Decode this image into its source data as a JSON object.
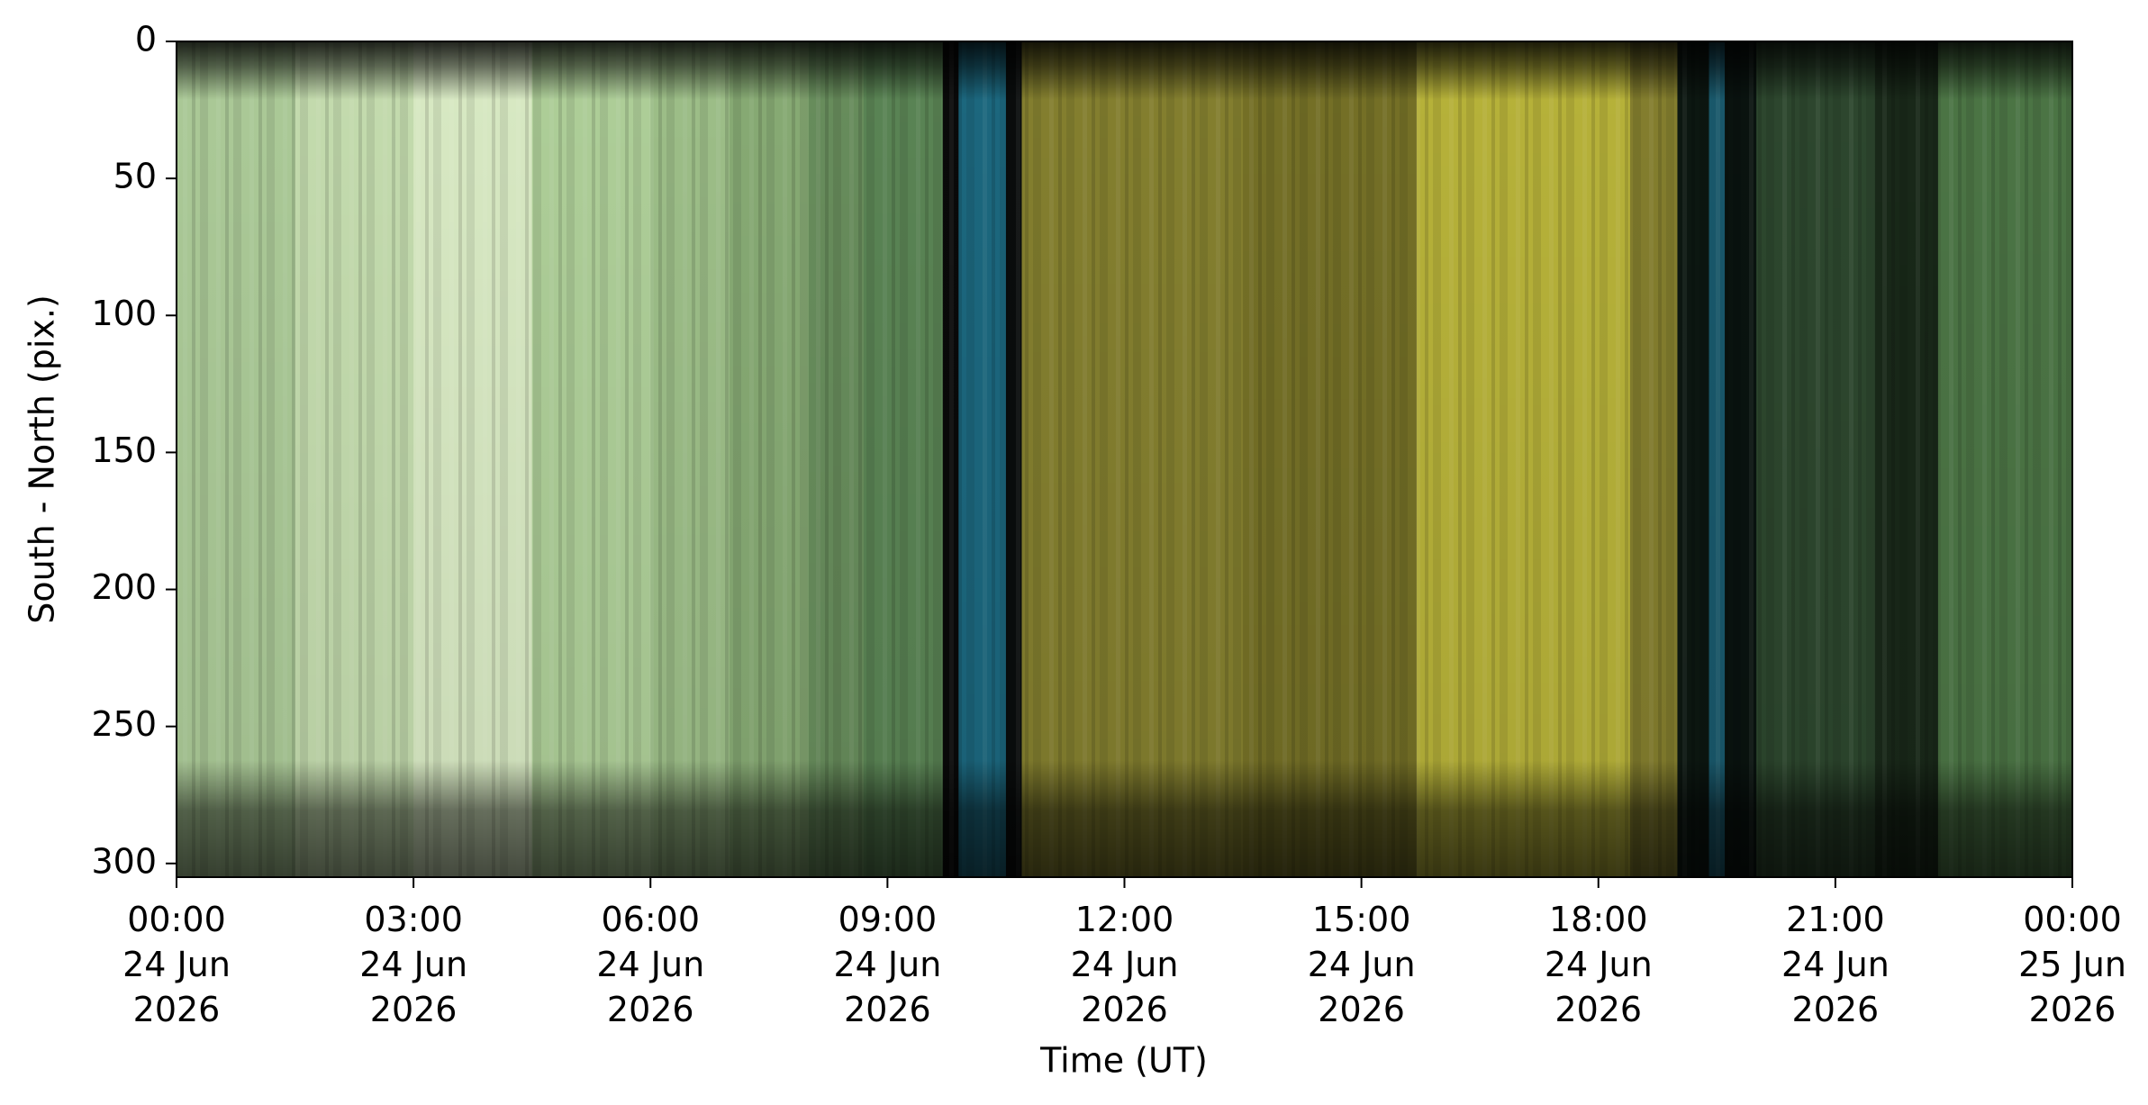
{
  "chart_data": {
    "type": "keogram",
    "xlabel": "Time (UT)",
    "ylabel": "South - North (pix.)",
    "xlim": [
      0,
      24
    ],
    "xticks": [
      {
        "value": 0,
        "label": "00:00\n24 Jun\n2026"
      },
      {
        "value": 3,
        "label": "03:00\n24 Jun\n2026"
      },
      {
        "value": 6,
        "label": "06:00\n24 Jun\n2026"
      },
      {
        "value": 9,
        "label": "09:00\n24 Jun\n2026"
      },
      {
        "value": 12,
        "label": "12:00\n24 Jun\n2026"
      },
      {
        "value": 15,
        "label": "15:00\n24 Jun\n2026"
      },
      {
        "value": 18,
        "label": "18:00\n24 Jun\n2026"
      },
      {
        "value": 21,
        "label": "21:00\n24 Jun\n2026"
      },
      {
        "value": 24,
        "label": "00:00\n25 Jun\n2026"
      }
    ],
    "ylim": [
      305,
      0
    ],
    "yticks": [
      0,
      50,
      100,
      150,
      200,
      250,
      300
    ],
    "bands": [
      {
        "start": 0,
        "end": 1.5,
        "color": "#b3d39e"
      },
      {
        "start": 1.5,
        "end": 3,
        "color": "#cde6b6"
      },
      {
        "start": 3,
        "end": 4.5,
        "color": "#e2f4cc"
      },
      {
        "start": 4.5,
        "end": 6,
        "color": "#b6d89f"
      },
      {
        "start": 6,
        "end": 7,
        "color": "#a4c78e"
      },
      {
        "start": 7,
        "end": 8,
        "color": "#8db279"
      },
      {
        "start": 8,
        "end": 8.7,
        "color": "#6c9360"
      },
      {
        "start": 8.7,
        "end": 9.7,
        "color": "#5e8a58"
      },
      {
        "start": 9.7,
        "end": 9.9,
        "color": "#0a0a0a"
      },
      {
        "start": 9.9,
        "end": 10.5,
        "color": "#1d6c84"
      },
      {
        "start": 10.5,
        "end": 10.7,
        "color": "#0a0d0d"
      },
      {
        "start": 10.7,
        "end": 13.5,
        "color": "#8a8531"
      },
      {
        "start": 13.5,
        "end": 15.7,
        "color": "#7a7528"
      },
      {
        "start": 15.7,
        "end": 18.4,
        "color": "#bfba3c"
      },
      {
        "start": 18.4,
        "end": 19,
        "color": "#8a8430"
      },
      {
        "start": 19,
        "end": 19.4,
        "color": "#0d1812"
      },
      {
        "start": 19.4,
        "end": 19.6,
        "color": "#1a5c70"
      },
      {
        "start": 19.6,
        "end": 20,
        "color": "#0a1410"
      },
      {
        "start": 20,
        "end": 21.5,
        "color": "#2f4a30"
      },
      {
        "start": 21.5,
        "end": 22.3,
        "color": "#1a2a1a"
      },
      {
        "start": 22.3,
        "end": 24,
        "color": "#4f7a48"
      }
    ]
  }
}
